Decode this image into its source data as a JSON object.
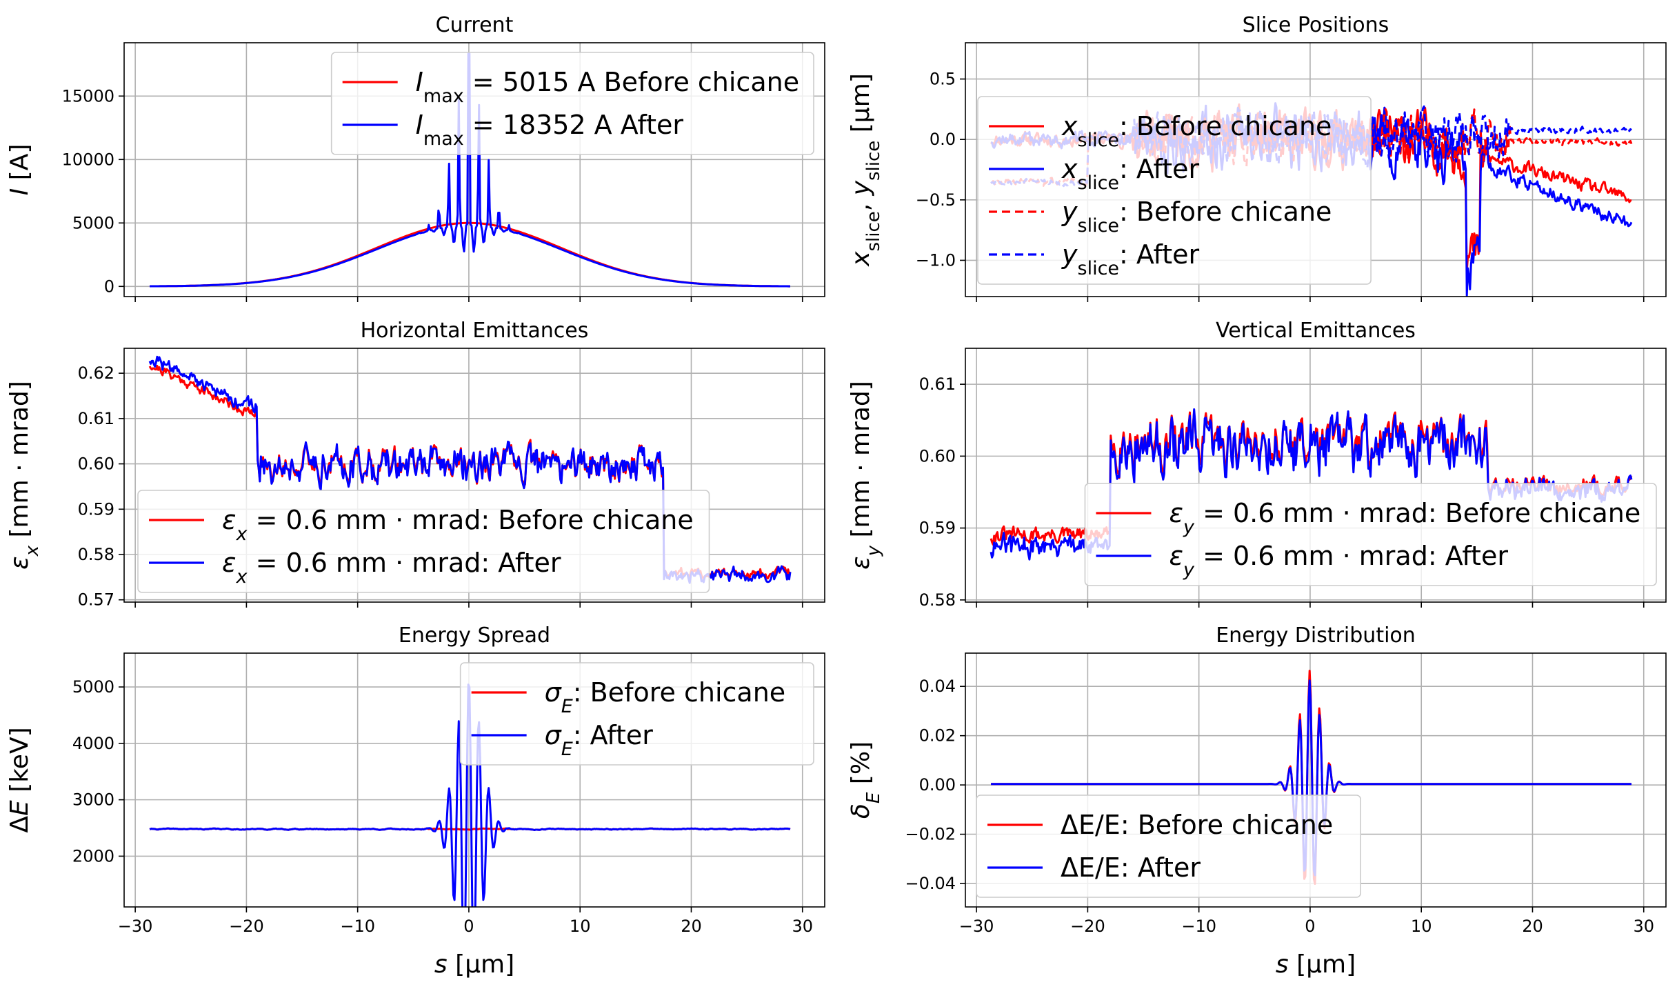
{
  "chart_data": [
    {
      "panel": "current",
      "type": "line",
      "title": "Current",
      "xlabel": "",
      "ylabel": "I [A]",
      "xlim": [
        -31,
        32
      ],
      "ylim": [
        -800,
        19200
      ],
      "xticks": [
        -30,
        -20,
        -10,
        0,
        10,
        20,
        30
      ],
      "yticks": [
        0,
        5000,
        10000,
        15000
      ],
      "ytick_labels": [
        "0",
        "5000",
        "10000",
        "15000"
      ],
      "show_xtick_labels": false,
      "grid": true,
      "legend_position": "upper-right",
      "legend_scale": 1.0,
      "series": [
        {
          "name": "I_max = 5015 A Before chicane",
          "color": "#ff0000",
          "style": "solid",
          "model": "current_before"
        },
        {
          "name": "I_max = 18352 A After",
          "color": "#0000ff",
          "style": "solid",
          "model": "current_after"
        }
      ],
      "legend": [
        {
          "pre": "I",
          "sub": "max",
          "post": " = 5015 A Before chicane",
          "color": "#ff0000",
          "style": "solid"
        },
        {
          "pre": "I",
          "sub": "max",
          "post": " = 18352 A After",
          "color": "#0000ff",
          "style": "solid"
        }
      ]
    },
    {
      "panel": "slice-positions",
      "type": "line",
      "title": "Slice Positions",
      "xlabel": "",
      "ylabel": "x_slice, y_slice [µm]",
      "xlim": [
        -31,
        32
      ],
      "ylim": [
        -1.3,
        0.8
      ],
      "xticks": [
        -30,
        -20,
        -10,
        0,
        10,
        20,
        30
      ],
      "yticks": [
        -1.0,
        -0.5,
        0.0,
        0.5
      ],
      "ytick_labels": [
        "−1.0",
        "−0.5",
        "0.0",
        "0.5"
      ],
      "show_xtick_labels": false,
      "grid": true,
      "legend_position": "center-left",
      "legend_scale": 1.0,
      "series": [
        {
          "name": "x_slice: Before chicane",
          "color": "#ff0000",
          "style": "solid",
          "model": "xpos_before"
        },
        {
          "name": "x_slice: After",
          "color": "#0000ff",
          "style": "solid",
          "model": "xpos_after"
        },
        {
          "name": "y_slice: Before chicane",
          "color": "#ff0000",
          "style": "dashed",
          "model": "ypos_before"
        },
        {
          "name": "y_slice: After",
          "color": "#0000ff",
          "style": "dashed",
          "model": "ypos_after"
        }
      ],
      "legend": [
        {
          "pre": "x",
          "sub": "slice",
          "post": ": Before chicane",
          "color": "#ff0000",
          "style": "solid"
        },
        {
          "pre": "x",
          "sub": "slice",
          "post": ": After",
          "color": "#0000ff",
          "style": "solid"
        },
        {
          "pre": "y",
          "sub": "slice",
          "post": ": Before chicane",
          "color": "#ff0000",
          "style": "dashed"
        },
        {
          "pre": "y",
          "sub": "slice",
          "post": ": After",
          "color": "#0000ff",
          "style": "dashed"
        }
      ]
    },
    {
      "panel": "horizontal-emittances",
      "type": "line",
      "title": "Horizontal Emittances",
      "xlabel": "",
      "ylabel": "εx [mm · mrad]",
      "xlim": [
        -31,
        32
      ],
      "ylim": [
        0.5695,
        0.6255
      ],
      "xticks": [
        -30,
        -20,
        -10,
        0,
        10,
        20,
        30
      ],
      "yticks": [
        0.57,
        0.58,
        0.59,
        0.6,
        0.61,
        0.62
      ],
      "ytick_labels": [
        "0.57",
        "0.58",
        "0.59",
        "0.60",
        "0.61",
        "0.62"
      ],
      "show_xtick_labels": false,
      "grid": true,
      "legend_position": "lower-center",
      "legend_scale": 1.0,
      "series": [
        {
          "name": "εx = 0.6 mm·mrad: Before chicane",
          "color": "#ff0000",
          "style": "solid",
          "model": "epsx_before"
        },
        {
          "name": "εx = 0.6 mm·mrad: After",
          "color": "#0000ff",
          "style": "solid",
          "model": "epsx_after"
        }
      ],
      "legend": [
        {
          "pre": "ε",
          "sub": "x",
          "post": " = 0.6 mm · mrad: Before chicane",
          "color": "#ff0000",
          "style": "solid"
        },
        {
          "pre": "ε",
          "sub": "x",
          "post": " = 0.6 mm · mrad: After",
          "color": "#0000ff",
          "style": "solid"
        }
      ]
    },
    {
      "panel": "vertical-emittances",
      "type": "line",
      "title": "Vertical Emittances",
      "xlabel": "",
      "ylabel": "εy [mm · mrad]",
      "xlim": [
        -31,
        32
      ],
      "ylim": [
        0.5797,
        0.615
      ],
      "xticks": [
        -30,
        -20,
        -10,
        0,
        10,
        20,
        30
      ],
      "yticks": [
        0.58,
        0.59,
        0.6,
        0.61
      ],
      "ytick_labels": [
        "0.58",
        "0.59",
        "0.60",
        "0.61"
      ],
      "show_xtick_labels": false,
      "grid": true,
      "legend_position": "lower-right",
      "legend_scale": 1.0,
      "series": [
        {
          "name": "εy = 0.6 mm·mrad: Before chicane",
          "color": "#ff0000",
          "style": "solid",
          "model": "epsy_before"
        },
        {
          "name": "εy = 0.6 mm·mrad: After",
          "color": "#0000ff",
          "style": "solid",
          "model": "epsy_after"
        }
      ],
      "legend": [
        {
          "pre": "ε",
          "sub": "y",
          "post": " = 0.6 mm · mrad: Before chicane",
          "color": "#ff0000",
          "style": "solid"
        },
        {
          "pre": "ε",
          "sub": "y",
          "post": " = 0.6 mm · mrad: After",
          "color": "#0000ff",
          "style": "solid"
        }
      ]
    },
    {
      "panel": "energy-spread",
      "type": "line",
      "title": "Energy Spread",
      "xlabel": "s [µm]",
      "ylabel": "ΔE [keV]",
      "xlim": [
        -31,
        32
      ],
      "ylim": [
        1100,
        5600
      ],
      "xticks": [
        -30,
        -20,
        -10,
        0,
        10,
        20,
        30
      ],
      "xtick_labels": [
        "−30",
        "−20",
        "−10",
        "0",
        "10",
        "20",
        "30"
      ],
      "yticks": [
        2000,
        3000,
        4000,
        5000
      ],
      "ytick_labels": [
        "2000",
        "3000",
        "4000",
        "5000"
      ],
      "show_xtick_labels": true,
      "grid": true,
      "legend_position": "upper-right",
      "legend_scale": 1.0,
      "series": [
        {
          "name": "σE: Before chicane",
          "color": "#ff0000",
          "style": "solid",
          "model": "sigE_before"
        },
        {
          "name": "σE: After",
          "color": "#0000ff",
          "style": "solid",
          "model": "sigE_after"
        }
      ],
      "legend": [
        {
          "pre": "σ",
          "sub": "E",
          "post": ": Before chicane",
          "color": "#ff0000",
          "style": "solid"
        },
        {
          "pre": "σ",
          "sub": "E",
          "post": ": After",
          "color": "#0000ff",
          "style": "solid"
        }
      ]
    },
    {
      "panel": "energy-distribution",
      "type": "line",
      "title": "Energy Distribution",
      "xlabel": "s [µm]",
      "ylabel": "δE [%]",
      "xlim": [
        -31,
        32
      ],
      "ylim": [
        -0.0495,
        0.0535
      ],
      "xticks": [
        -30,
        -20,
        -10,
        0,
        10,
        20,
        30
      ],
      "xtick_labels": [
        "−30",
        "−20",
        "−10",
        "0",
        "10",
        "20",
        "30"
      ],
      "yticks": [
        -0.04,
        -0.02,
        0.0,
        0.02,
        0.04
      ],
      "ytick_labels": [
        "−0.04",
        "−0.02",
        "0.00",
        "0.02",
        "0.04"
      ],
      "show_xtick_labels": true,
      "grid": true,
      "legend_position": "lower-left",
      "legend_scale": 1.0,
      "series": [
        {
          "name": "ΔE/E: Before chicane",
          "color": "#ff0000",
          "style": "solid",
          "model": "dE_before"
        },
        {
          "name": "ΔE/E: After",
          "color": "#0000ff",
          "style": "solid",
          "model": "dE_after"
        }
      ],
      "legend": [
        {
          "pre": "ΔE/E",
          "sub": "",
          "post": ": Before chicane",
          "color": "#ff0000",
          "style": "solid"
        },
        {
          "pre": "ΔE/E",
          "sub": "",
          "post": ": After",
          "color": "#0000ff",
          "style": "solid"
        }
      ]
    }
  ]
}
